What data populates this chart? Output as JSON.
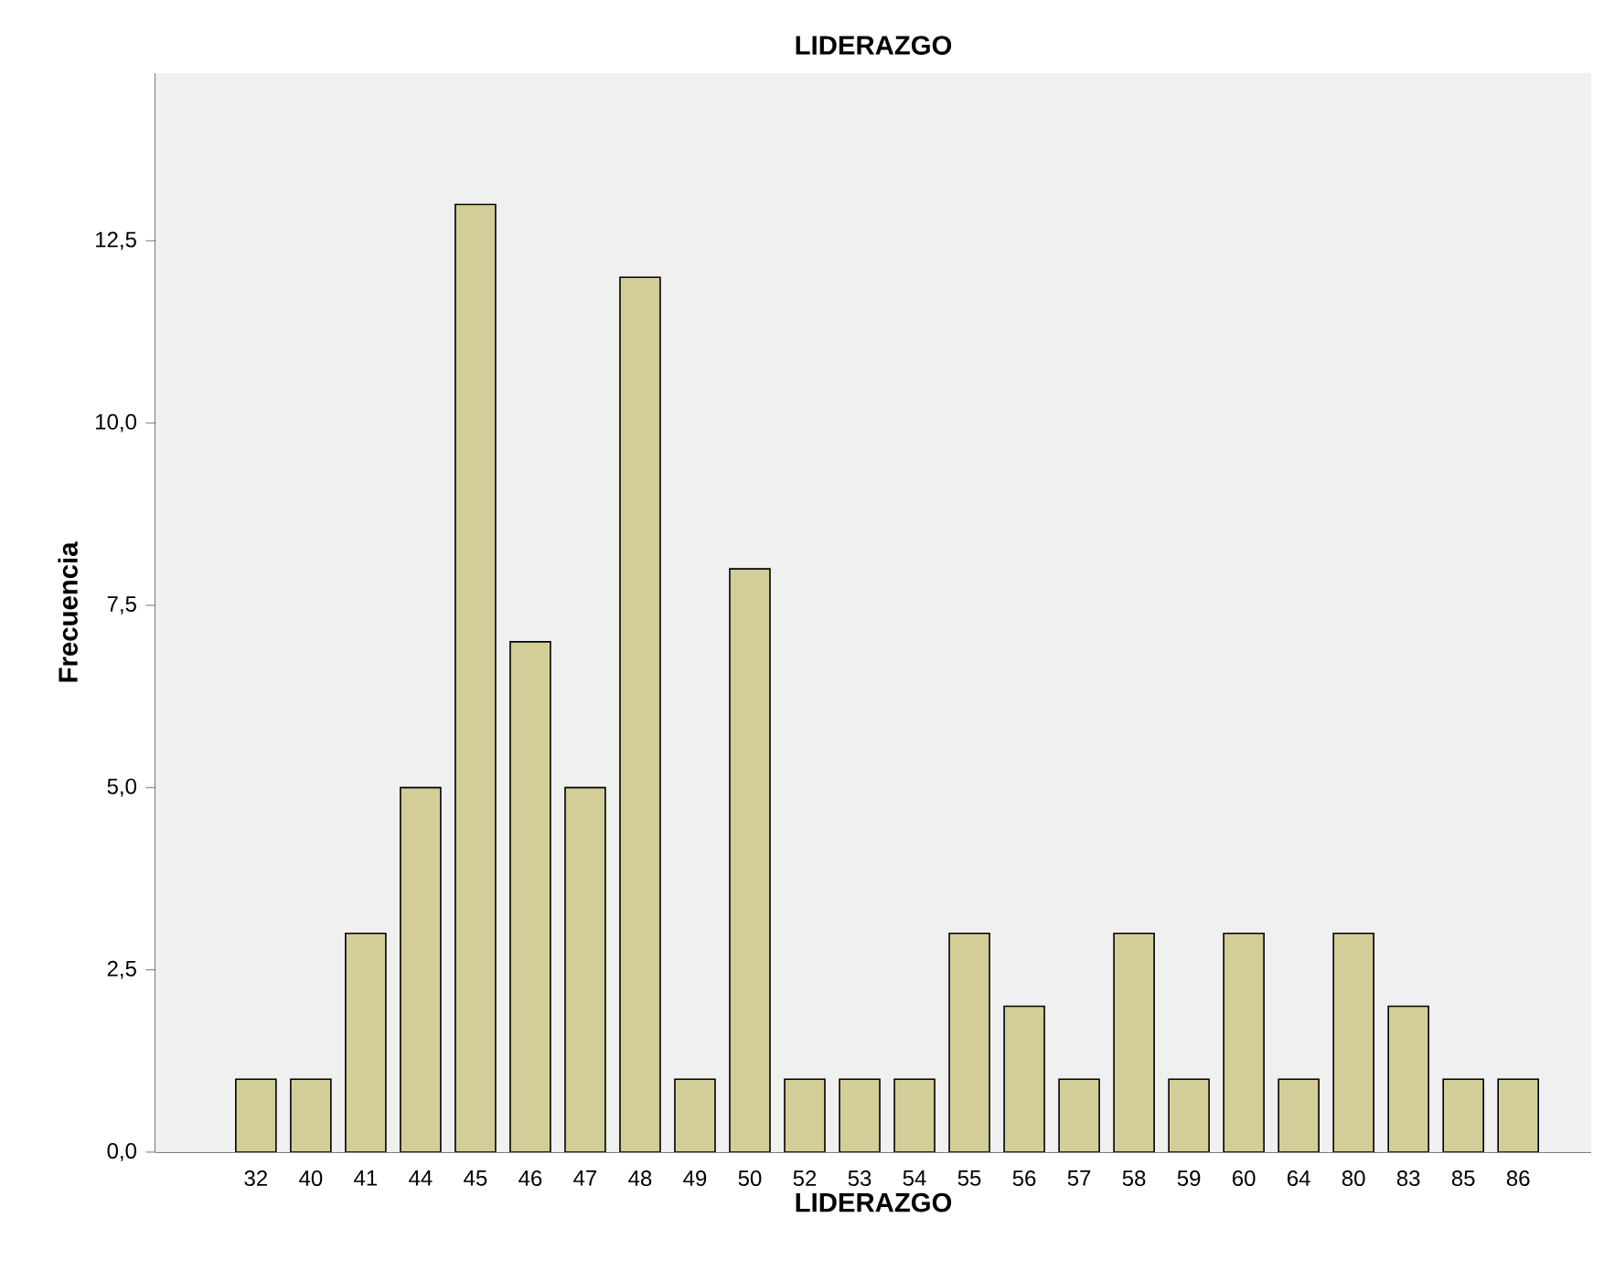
{
  "chart_data": {
    "type": "bar",
    "title": "LIDERAZGO",
    "xlabel": "LIDERAZGO",
    "ylabel": "Frecuencia",
    "categories": [
      "32",
      "40",
      "41",
      "44",
      "45",
      "46",
      "47",
      "48",
      "49",
      "50",
      "52",
      "53",
      "54",
      "55",
      "56",
      "57",
      "58",
      "59",
      "60",
      "64",
      "80",
      "83",
      "85",
      "86"
    ],
    "values": [
      1,
      1,
      3,
      5,
      13,
      7,
      5,
      12,
      1,
      8,
      1,
      1,
      1,
      3,
      2,
      1,
      3,
      1,
      3,
      1,
      3,
      2,
      1,
      1
    ],
    "color": "#d3ce97",
    "ylim": [
      0,
      14.8
    ],
    "yticks": [
      {
        "value": 0,
        "label": "0,0"
      },
      {
        "value": 2.5,
        "label": "2,5"
      },
      {
        "value": 5,
        "label": "5,0"
      },
      {
        "value": 7.5,
        "label": "7,5"
      },
      {
        "value": 10,
        "label": "10,0"
      },
      {
        "value": 12.5,
        "label": "12,5"
      }
    ]
  }
}
